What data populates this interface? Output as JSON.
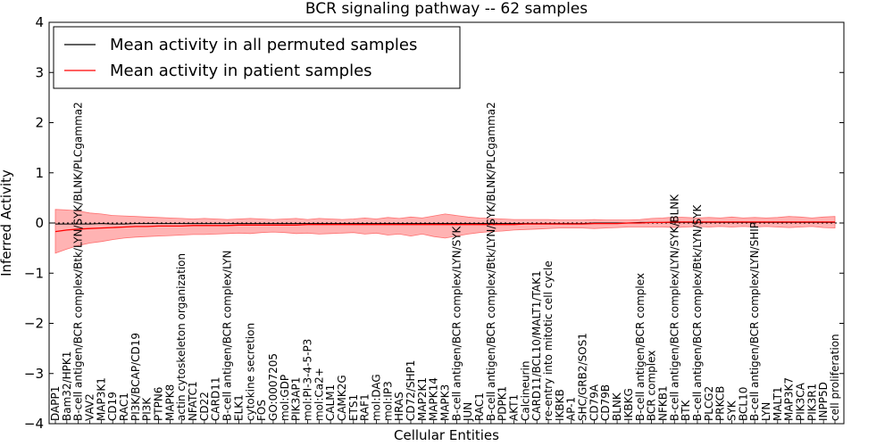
{
  "chart_data": {
    "type": "line",
    "title": "BCR signaling pathway -- 62 samples",
    "xlabel": "Cellular Entities",
    "ylabel": "Inferred Activity",
    "ylim": [
      -4,
      4
    ],
    "yticks": [
      -4,
      -3,
      -2,
      -1,
      0,
      1,
      2,
      3,
      4
    ],
    "legend_position": "top-left",
    "categories": [
      "DAPP1",
      "Bam32/HPK1",
      "B-cell antigen/BCR complex/Btk/LYN/SYK/BLNK/PLCgamma2",
      "VAV2",
      "MAP3K1",
      "CD19",
      "RAC1",
      "PI3K/BCAP/CD19",
      "PI3K",
      "PTPN6",
      "MAPK8",
      "actin cytoskeleton organization",
      "NFATC1",
      "CD22",
      "CARD11",
      "B-cell antigen/BCR complex/LYN",
      "ELK1",
      "cytokine secretion",
      "FOS",
      "GO:0007205",
      "mol:GDP",
      "PIK3AP1",
      "mol:PI-3-4-5-P3",
      "mol:Ca2+",
      "CALM1",
      "CAMK2G",
      "ETS1",
      "RAF1",
      "mol:DAG",
      "mol:IP3",
      "HRAS",
      "CD72/SHP1",
      "MAP2K1",
      "MAPK14",
      "MAPK3",
      "B-cell antigen/BCR complex/LYN/SYK",
      "JUN",
      "RAC1",
      "B-cell antigen/BCR complex/Btk/LYN/SYK/BLNK/PLCgamma2",
      "PDPK1",
      "AKT1",
      "Calcineurin",
      "CARD11/BCL10/MALT1/TAK1",
      "re-entry into mitotic cell cycle",
      "IKBKB",
      "AP-1",
      "SHC/GRB2/SOS1",
      "CD79A",
      "CD79B",
      "BLNK",
      "IKBKG",
      "B-cell antigen/BCR complex",
      "BCR complex",
      "NFKB1",
      "B-cell antigen/BCR complex/LYN/SYK/BLNK",
      "BTK",
      "B-cell antigen/BCR complex/Btk/LYN/SYK",
      "PLCG2",
      "PRKCB",
      "SYK",
      "BCL10",
      "B-cell antigen/BCR complex/LYN/SHIP",
      "LYN",
      "MALT1",
      "MAP3K7",
      "PIK3CA",
      "PIK3R1",
      "INPP5D",
      "cell proliferation"
    ],
    "series": [
      {
        "name": "Mean activity in all permuted samples",
        "color": "#000000",
        "values": [
          -0.02,
          -0.02,
          -0.02,
          -0.02,
          -0.01,
          -0.02,
          -0.02,
          -0.01,
          -0.01,
          -0.01,
          -0.01,
          -0.01,
          -0.01,
          -0.01,
          -0.01,
          -0.01,
          -0.01,
          -0.01,
          -0.01,
          -0.01,
          -0.01,
          -0.01,
          -0.01,
          -0.01,
          -0.01,
          -0.01,
          -0.01,
          -0.01,
          -0.01,
          -0.01,
          -0.01,
          -0.01,
          -0.01,
          -0.01,
          -0.01,
          -0.01,
          -0.01,
          -0.01,
          -0.01,
          -0.01,
          -0.01,
          -0.01,
          -0.01,
          -0.01,
          -0.01,
          -0.01,
          -0.01,
          0.0,
          0.0,
          0.0,
          0.0,
          0.01,
          0.01,
          0.01,
          0.01,
          0.01,
          0.01,
          0.01,
          0.01,
          0.01,
          0.01,
          0.01,
          0.01,
          0.01,
          0.01,
          0.01,
          0.01,
          0.01,
          0.01
        ]
      },
      {
        "name": "Mean activity in patient samples",
        "color": "#ff0000",
        "band_color": "#ff9a9a",
        "values": [
          -0.17,
          -0.14,
          -0.12,
          -0.11,
          -0.1,
          -0.09,
          -0.08,
          -0.07,
          -0.07,
          -0.06,
          -0.06,
          -0.06,
          -0.05,
          -0.05,
          -0.05,
          -0.05,
          -0.04,
          -0.04,
          -0.04,
          -0.04,
          -0.04,
          -0.04,
          -0.03,
          -0.03,
          -0.03,
          -0.03,
          -0.03,
          -0.03,
          -0.03,
          -0.03,
          -0.03,
          -0.03,
          -0.03,
          -0.03,
          -0.03,
          -0.03,
          -0.03,
          -0.03,
          -0.03,
          -0.03,
          -0.03,
          -0.02,
          -0.02,
          -0.02,
          -0.02,
          -0.02,
          -0.02,
          -0.01,
          -0.01,
          -0.01,
          0.0,
          0.0,
          0.01,
          0.01,
          0.02,
          0.02,
          0.02,
          0.02,
          0.02,
          0.02,
          0.02,
          0.02,
          0.02,
          0.02,
          0.02,
          0.02,
          0.02,
          0.02,
          0.02
        ],
        "upper": [
          0.27,
          0.26,
          0.24,
          0.2,
          0.18,
          0.15,
          0.14,
          0.13,
          0.12,
          0.11,
          0.1,
          0.09,
          0.08,
          0.09,
          0.08,
          0.07,
          0.08,
          0.09,
          0.08,
          0.07,
          0.08,
          0.09,
          0.07,
          0.09,
          0.08,
          0.07,
          0.08,
          0.1,
          0.08,
          0.11,
          0.09,
          0.12,
          0.1,
          0.14,
          0.18,
          0.15,
          0.12,
          0.1,
          0.09,
          0.08,
          0.07,
          0.07,
          0.07,
          0.07,
          0.06,
          0.06,
          0.06,
          0.07,
          0.06,
          0.06,
          0.06,
          0.07,
          0.09,
          0.1,
          0.12,
          0.11,
          0.1,
          0.11,
          0.1,
          0.12,
          0.1,
          0.11,
          0.1,
          0.11,
          0.13,
          0.12,
          0.1,
          0.12,
          0.13
        ],
        "lower": [
          -0.6,
          -0.52,
          -0.45,
          -0.4,
          -0.37,
          -0.33,
          -0.3,
          -0.28,
          -0.27,
          -0.26,
          -0.25,
          -0.24,
          -0.23,
          -0.23,
          -0.22,
          -0.21,
          -0.2,
          -0.21,
          -0.19,
          -0.18,
          -0.19,
          -0.21,
          -0.2,
          -0.22,
          -0.21,
          -0.2,
          -0.19,
          -0.22,
          -0.2,
          -0.24,
          -0.22,
          -0.26,
          -0.22,
          -0.27,
          -0.3,
          -0.26,
          -0.22,
          -0.19,
          -0.17,
          -0.16,
          -0.14,
          -0.13,
          -0.12,
          -0.11,
          -0.1,
          -0.1,
          -0.1,
          -0.11,
          -0.1,
          -0.09,
          -0.08,
          -0.08,
          -0.08,
          -0.08,
          -0.09,
          -0.08,
          -0.07,
          -0.08,
          -0.07,
          -0.08,
          -0.07,
          -0.08,
          -0.07,
          -0.08,
          -0.09,
          -0.08,
          -0.07,
          -0.09,
          -0.1
        ]
      }
    ]
  }
}
